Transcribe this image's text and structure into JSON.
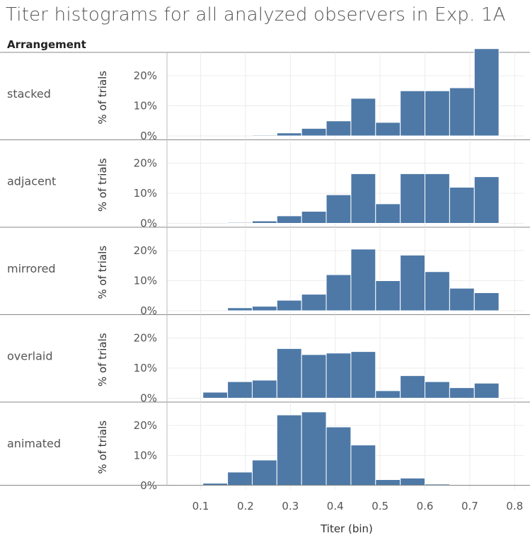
{
  "chart_data": {
    "type": "bar",
    "title": "Titer histograms for all analyzed observers in Exp. 1A",
    "row_header": "Arrangement",
    "xlabel": "Titer (bin)",
    "ylabel": "% of trials",
    "x_ticks": [
      "0.1",
      "0.2",
      "0.3",
      "0.4",
      "0.5",
      "0.6",
      "0.7",
      "0.8"
    ],
    "y_ticks": [
      "0%",
      "10%",
      "20%"
    ],
    "xlim": [
      0.025,
      0.82
    ],
    "ylim": [
      0,
      30
    ],
    "bin_width": 0.055,
    "bins": [
      0.05,
      0.105,
      0.16,
      0.215,
      0.27,
      0.325,
      0.38,
      0.435,
      0.49,
      0.545,
      0.6,
      0.655,
      0.71,
      0.765
    ],
    "bar_color": "#4e79a7",
    "grid": true,
    "series": [
      {
        "name": "stacked",
        "values": [
          0,
          0,
          0,
          0.3,
          1,
          2.5,
          5,
          12.5,
          4.5,
          15,
          15,
          16,
          29,
          0
        ]
      },
      {
        "name": "adjacent",
        "values": [
          0,
          0,
          0.3,
          0.8,
          2.5,
          4,
          9.5,
          16.5,
          6.5,
          16.5,
          16.5,
          12,
          15.5,
          0
        ]
      },
      {
        "name": "mirrored",
        "values": [
          0,
          0,
          1,
          1.5,
          3.5,
          5.5,
          12,
          20.5,
          10,
          18.5,
          13,
          7.5,
          6,
          0
        ]
      },
      {
        "name": "overlaid",
        "values": [
          0,
          2,
          5.5,
          6,
          16.5,
          14.5,
          15,
          15.5,
          2.5,
          7.5,
          5.5,
          3.5,
          5,
          0
        ]
      },
      {
        "name": "animated",
        "values": [
          0.3,
          0.8,
          4.5,
          8.5,
          23.5,
          24.5,
          19.5,
          13.5,
          2,
          2.5,
          0.5,
          0,
          0,
          0
        ]
      }
    ]
  }
}
